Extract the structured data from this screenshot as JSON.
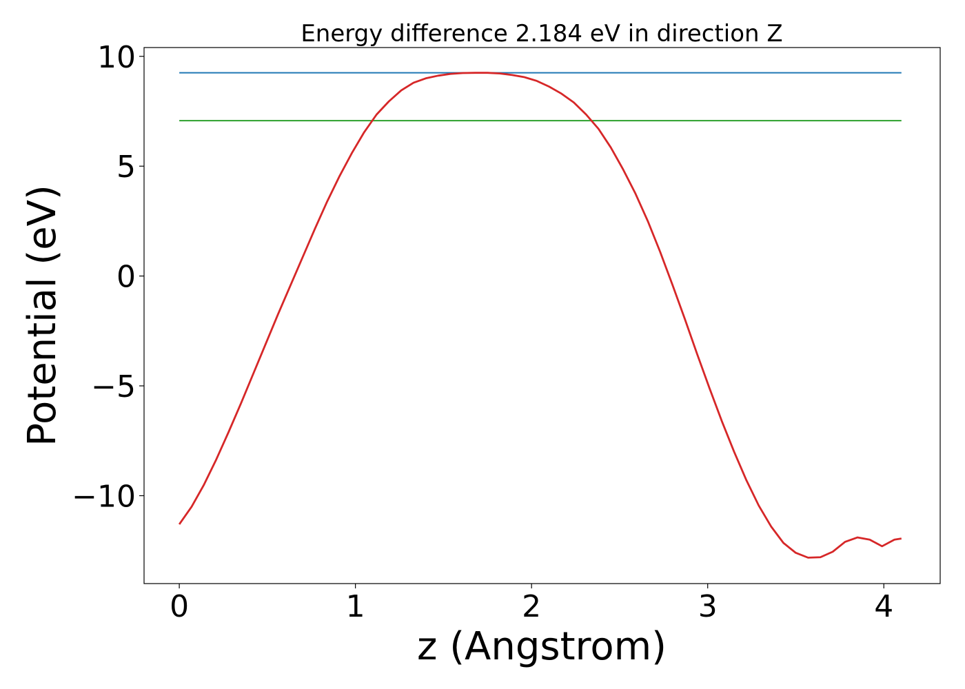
{
  "chart_data": {
    "type": "line",
    "title": "Energy difference 2.184 eV in direction Z",
    "xlabel": "z (Angstrom)",
    "ylabel": "Potential (eV)",
    "xlim": [
      -0.2,
      4.32
    ],
    "ylim": [
      -14.0,
      10.4
    ],
    "xticks": [
      0,
      1,
      2,
      3,
      4
    ],
    "xtick_labels": [
      "0",
      "1",
      "2",
      "3",
      "4"
    ],
    "yticks": [
      -10,
      -5,
      0,
      5,
      10
    ],
    "ytick_labels": [
      "−10",
      "−5",
      "0",
      "5",
      "10"
    ],
    "grid": false,
    "series": [
      {
        "name": "",
        "color": "#1f77b4",
        "x": [
          0,
          4.1
        ],
        "y": [
          9.25,
          9.25
        ]
      },
      {
        "name": "",
        "color": "#2ca02c",
        "x": [
          0,
          4.1
        ],
        "y": [
          7.07,
          7.07
        ]
      },
      {
        "name": "",
        "color": "#d62728",
        "x": [
          0.0,
          0.07,
          0.14,
          0.21,
          0.28,
          0.35,
          0.42,
          0.49,
          0.56,
          0.63,
          0.7,
          0.77,
          0.84,
          0.91,
          0.98,
          1.05,
          1.12,
          1.19,
          1.26,
          1.33,
          1.4,
          1.47,
          1.54,
          1.61,
          1.68,
          1.75,
          1.82,
          1.89,
          1.96,
          2.03,
          2.1,
          2.17,
          2.24,
          2.31,
          2.38,
          2.45,
          2.52,
          2.59,
          2.66,
          2.73,
          2.8,
          2.87,
          2.94,
          3.01,
          3.08,
          3.15,
          3.22,
          3.29,
          3.36,
          3.43,
          3.5,
          3.57,
          3.64,
          3.71,
          3.78,
          3.85,
          3.92,
          3.99,
          4.06,
          4.1
        ],
        "y": [
          -11.3,
          -10.5,
          -9.5,
          -8.35,
          -7.1,
          -5.8,
          -4.45,
          -3.1,
          -1.75,
          -0.45,
          0.85,
          2.15,
          3.4,
          4.55,
          5.6,
          6.55,
          7.35,
          7.95,
          8.45,
          8.8,
          9.0,
          9.12,
          9.2,
          9.24,
          9.25,
          9.25,
          9.22,
          9.15,
          9.05,
          8.88,
          8.62,
          8.3,
          7.9,
          7.35,
          6.7,
          5.85,
          4.85,
          3.75,
          2.5,
          1.1,
          -0.4,
          -1.95,
          -3.55,
          -5.1,
          -6.6,
          -8.0,
          -9.3,
          -10.45,
          -11.4,
          -12.15,
          -12.6,
          -12.82,
          -12.8,
          -12.55,
          -12.1,
          -11.9,
          -12.0,
          -12.3,
          -12.0,
          -11.95
        ]
      }
    ]
  }
}
